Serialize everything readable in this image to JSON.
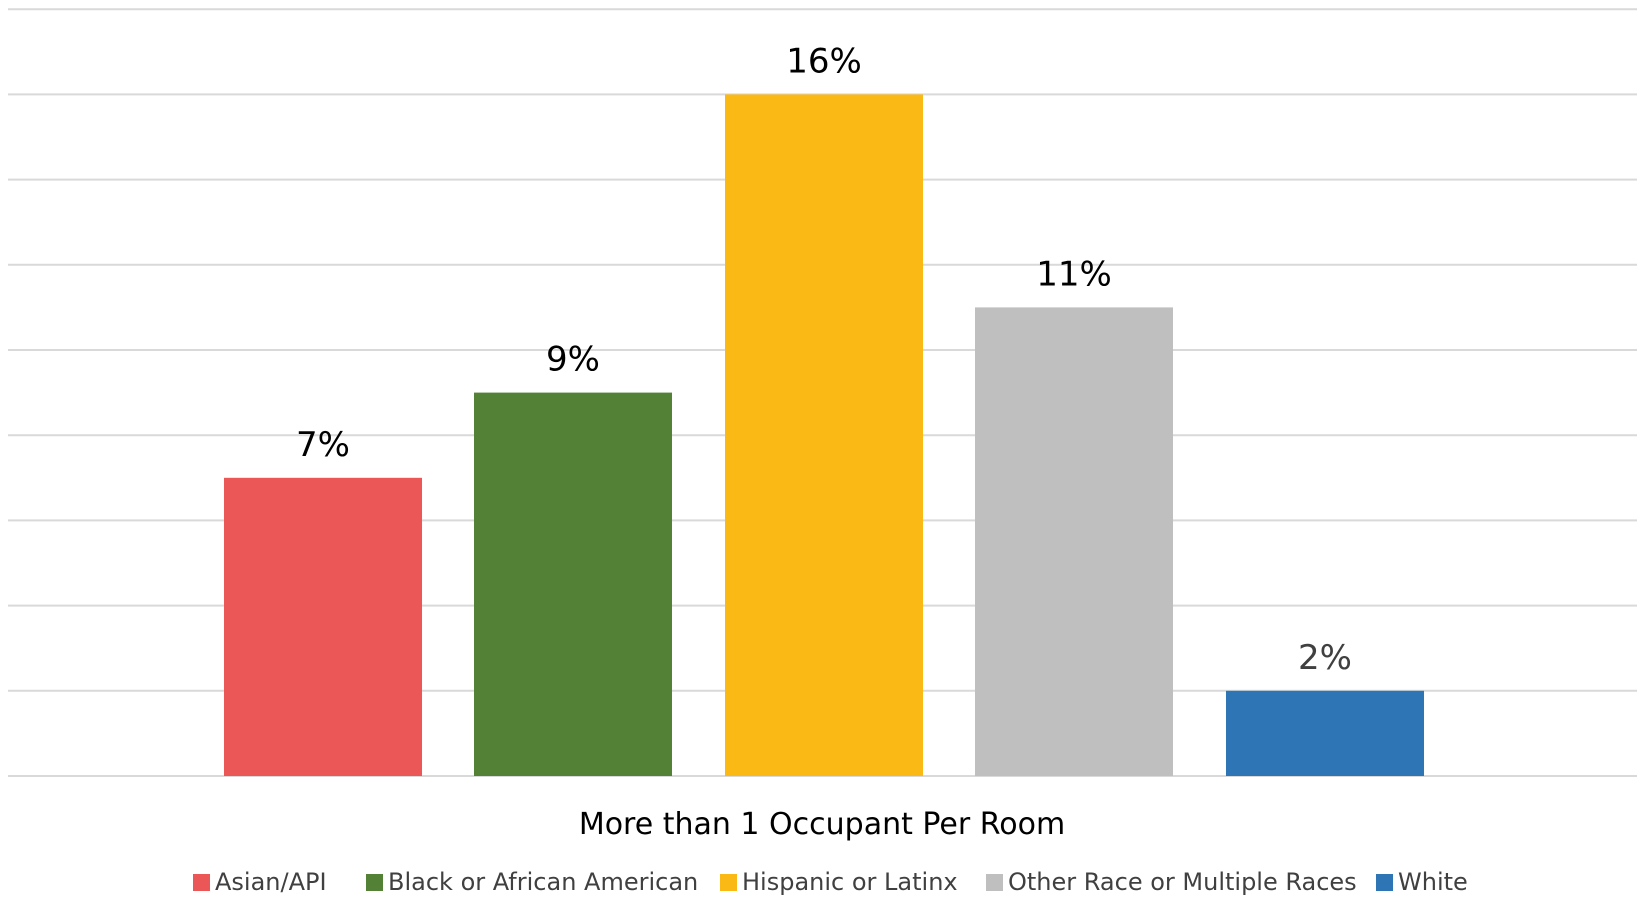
{
  "chart_data": {
    "type": "bar",
    "x_category_label": "More than 1 Occupant Per Room",
    "ylim": [
      0,
      18
    ],
    "grid": true,
    "legend_position": "bottom",
    "series": [
      {
        "name": "Asian/API",
        "value": 7,
        "label": "7%",
        "color": "#EB5757"
      },
      {
        "name": "Black or African American",
        "value": 9,
        "label": "9%",
        "color": "#538135"
      },
      {
        "name": "Hispanic or Latinx",
        "value": 16,
        "label": "16%",
        "color": "#FBB915"
      },
      {
        "name": "Other Race or Multiple Races",
        "value": 11,
        "label": "11%",
        "color": "#BFBFBF"
      },
      {
        "name": "White",
        "value": 2,
        "label": "2%",
        "color": "#2E75B6"
      }
    ]
  },
  "colors": {
    "gridline": "#D9D9D9",
    "text": "#000000",
    "legend_text": "#404040"
  }
}
